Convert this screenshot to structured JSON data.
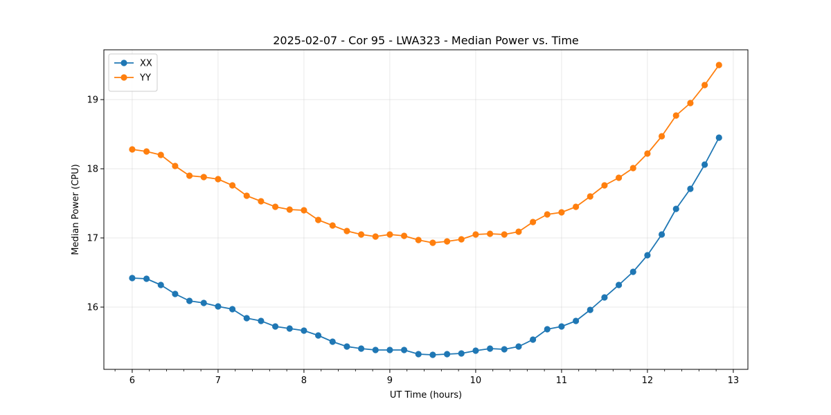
{
  "chart_data": {
    "type": "line",
    "title": "2025-02-07 - Cor 95 - LWA323 - Median Power vs. Time",
    "xlabel": "UT Time (hours)",
    "ylabel": "Median Power (CPU)",
    "xlim": [
      5.67,
      13.17
    ],
    "ylim": [
      15.1,
      19.72
    ],
    "grid": true,
    "legend_position": "top-left",
    "xticks": [
      6,
      7,
      8,
      9,
      10,
      11,
      12,
      13
    ],
    "yticks": [
      16,
      17,
      18,
      19
    ],
    "x": [
      6.0,
      6.1667,
      6.3333,
      6.5,
      6.6667,
      6.8333,
      7.0,
      7.1667,
      7.3333,
      7.5,
      7.6667,
      7.8333,
      8.0,
      8.1667,
      8.3333,
      8.5,
      8.6667,
      8.8333,
      9.0,
      9.1667,
      9.3333,
      9.5,
      9.6667,
      9.8333,
      10.0,
      10.1667,
      10.3333,
      10.5,
      10.6667,
      10.8333,
      11.0,
      11.1667,
      11.3333,
      11.5,
      11.6667,
      11.8333,
      12.0,
      12.1667,
      12.3333,
      12.5,
      12.6667,
      12.8333
    ],
    "series": [
      {
        "name": "XX",
        "color": "#1f77b4",
        "values": [
          16.42,
          16.41,
          16.32,
          16.19,
          16.09,
          16.06,
          16.01,
          15.97,
          15.84,
          15.8,
          15.72,
          15.69,
          15.66,
          15.59,
          15.5,
          15.43,
          15.4,
          15.38,
          15.38,
          15.38,
          15.32,
          15.31,
          15.32,
          15.33,
          15.37,
          15.4,
          15.39,
          15.43,
          15.53,
          15.68,
          15.72,
          15.8,
          15.96,
          16.14,
          16.32,
          16.51,
          16.75,
          17.05,
          17.42,
          17.71,
          18.06,
          18.45
        ]
      },
      {
        "name": "YY",
        "color": "#ff7f0e",
        "values": [
          18.28,
          18.25,
          18.2,
          18.04,
          17.9,
          17.88,
          17.85,
          17.76,
          17.61,
          17.53,
          17.45,
          17.41,
          17.4,
          17.26,
          17.18,
          17.1,
          17.05,
          17.02,
          17.05,
          17.03,
          16.97,
          16.93,
          16.95,
          16.98,
          17.05,
          17.06,
          17.05,
          17.09,
          17.23,
          17.34,
          17.37,
          17.45,
          17.6,
          17.76,
          17.87,
          18.01,
          18.22,
          18.47,
          18.77,
          18.95,
          19.21,
          19.5
        ]
      }
    ]
  }
}
